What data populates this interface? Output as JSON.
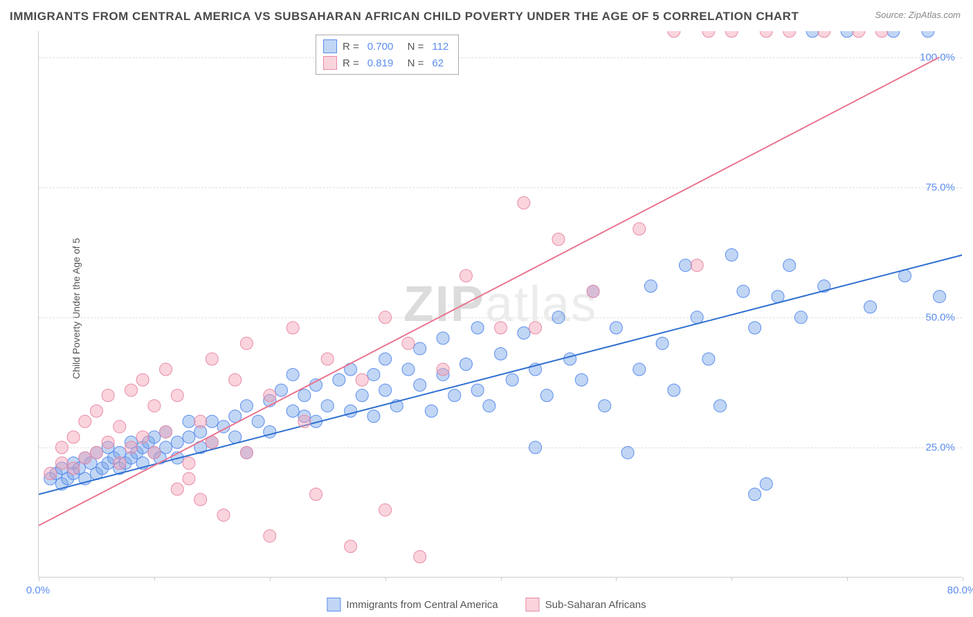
{
  "title": "IMMIGRANTS FROM CENTRAL AMERICA VS SUBSAHARAN AFRICAN CHILD POVERTY UNDER THE AGE OF 5 CORRELATION CHART",
  "source": "Source: ZipAtlas.com",
  "y_label": "Child Poverty Under the Age of 5",
  "watermark_a": "ZIP",
  "watermark_b": "atlas",
  "colors": {
    "blue_fill": "rgba(117,163,230,0.45)",
    "blue_stroke": "#5b8def",
    "blue_line": "#2f6fd0",
    "pink_fill": "rgba(244,160,180,0.45)",
    "pink_stroke": "#e88aa5",
    "pink_line": "#e97490",
    "axis_text": "#5b8def",
    "grid": "#dddddd",
    "title_color": "#4a4a4a",
    "source_color": "#888888"
  },
  "chart": {
    "type": "scatter",
    "xlim": [
      0,
      80
    ],
    "ylim": [
      0,
      105
    ],
    "y_ticks": [
      25,
      50,
      75,
      100
    ],
    "y_tick_labels": [
      "25.0%",
      "50.0%",
      "75.0%",
      "100.0%"
    ],
    "x_ticks": [
      0,
      10,
      20,
      30,
      40,
      50,
      60,
      70,
      80
    ],
    "x_tick_labels_shown": {
      "0": "0.0%",
      "80": "80.0%"
    },
    "marker_radius": 9,
    "line_width": 2,
    "series": [
      {
        "name": "Immigrants from Central America",
        "color_key": "blue",
        "R": "0.700",
        "N": "112",
        "trend": {
          "x1": 0,
          "y1": 16,
          "x2": 80,
          "y2": 62
        },
        "points": [
          [
            1,
            19
          ],
          [
            1.5,
            20
          ],
          [
            2,
            18
          ],
          [
            2,
            21
          ],
          [
            2.5,
            19
          ],
          [
            3,
            20
          ],
          [
            3,
            22
          ],
          [
            3.5,
            21
          ],
          [
            4,
            19
          ],
          [
            4,
            23
          ],
          [
            4.5,
            22
          ],
          [
            5,
            20
          ],
          [
            5,
            24
          ],
          [
            5.5,
            21
          ],
          [
            6,
            22
          ],
          [
            6,
            25
          ],
          [
            6.5,
            23
          ],
          [
            7,
            21
          ],
          [
            7,
            24
          ],
          [
            7.5,
            22
          ],
          [
            8,
            23
          ],
          [
            8,
            26
          ],
          [
            8.5,
            24
          ],
          [
            9,
            22
          ],
          [
            9,
            25
          ],
          [
            9.5,
            26
          ],
          [
            10,
            24
          ],
          [
            10,
            27
          ],
          [
            10.5,
            23
          ],
          [
            11,
            25
          ],
          [
            11,
            28
          ],
          [
            12,
            23
          ],
          [
            12,
            26
          ],
          [
            13,
            27
          ],
          [
            13,
            30
          ],
          [
            14,
            25
          ],
          [
            14,
            28
          ],
          [
            15,
            26
          ],
          [
            15,
            30
          ],
          [
            16,
            29
          ],
          [
            17,
            27
          ],
          [
            17,
            31
          ],
          [
            18,
            24
          ],
          [
            18,
            33
          ],
          [
            19,
            30
          ],
          [
            20,
            28
          ],
          [
            20,
            34
          ],
          [
            21,
            36
          ],
          [
            22,
            32
          ],
          [
            22,
            39
          ],
          [
            23,
            31
          ],
          [
            23,
            35
          ],
          [
            24,
            30
          ],
          [
            24,
            37
          ],
          [
            25,
            33
          ],
          [
            26,
            38
          ],
          [
            27,
            32
          ],
          [
            27,
            40
          ],
          [
            28,
            35
          ],
          [
            29,
            31
          ],
          [
            29,
            39
          ],
          [
            30,
            36
          ],
          [
            30,
            42
          ],
          [
            31,
            33
          ],
          [
            32,
            40
          ],
          [
            33,
            37
          ],
          [
            33,
            44
          ],
          [
            34,
            32
          ],
          [
            35,
            39
          ],
          [
            35,
            46
          ],
          [
            36,
            35
          ],
          [
            37,
            41
          ],
          [
            38,
            36
          ],
          [
            38,
            48
          ],
          [
            39,
            33
          ],
          [
            40,
            43
          ],
          [
            41,
            38
          ],
          [
            42,
            47
          ],
          [
            43,
            25
          ],
          [
            43,
            40
          ],
          [
            44,
            35
          ],
          [
            45,
            50
          ],
          [
            46,
            42
          ],
          [
            47,
            38
          ],
          [
            48,
            55
          ],
          [
            49,
            33
          ],
          [
            50,
            48
          ],
          [
            51,
            24
          ],
          [
            52,
            40
          ],
          [
            53,
            56
          ],
          [
            54,
            45
          ],
          [
            55,
            36
          ],
          [
            56,
            60
          ],
          [
            57,
            50
          ],
          [
            58,
            42
          ],
          [
            59,
            33
          ],
          [
            60,
            62
          ],
          [
            61,
            55
          ],
          [
            62,
            48
          ],
          [
            63,
            18
          ],
          [
            64,
            54
          ],
          [
            65,
            60
          ],
          [
            66,
            50
          ],
          [
            67,
            105
          ],
          [
            68,
            56
          ],
          [
            70,
            105
          ],
          [
            72,
            52
          ],
          [
            74,
            105
          ],
          [
            75,
            58
          ],
          [
            77,
            105
          ],
          [
            78,
            54
          ],
          [
            62,
            16
          ]
        ]
      },
      {
        "name": "Sub-Saharan Africans",
        "color_key": "pink",
        "R": "0.819",
        "N": "62",
        "trend": {
          "x1": 0,
          "y1": 10,
          "x2": 78,
          "y2": 100
        },
        "points": [
          [
            1,
            20
          ],
          [
            2,
            22
          ],
          [
            2,
            25
          ],
          [
            3,
            21
          ],
          [
            3,
            27
          ],
          [
            4,
            23
          ],
          [
            4,
            30
          ],
          [
            5,
            24
          ],
          [
            5,
            32
          ],
          [
            6,
            26
          ],
          [
            6,
            35
          ],
          [
            7,
            22
          ],
          [
            7,
            29
          ],
          [
            8,
            25
          ],
          [
            8,
            36
          ],
          [
            9,
            27
          ],
          [
            9,
            38
          ],
          [
            10,
            24
          ],
          [
            10,
            33
          ],
          [
            11,
            28
          ],
          [
            11,
            40
          ],
          [
            12,
            17
          ],
          [
            12,
            35
          ],
          [
            13,
            22
          ],
          [
            13,
            19
          ],
          [
            14,
            30
          ],
          [
            14,
            15
          ],
          [
            15,
            26
          ],
          [
            15,
            42
          ],
          [
            16,
            12
          ],
          [
            17,
            38
          ],
          [
            18,
            24
          ],
          [
            18,
            45
          ],
          [
            20,
            8
          ],
          [
            20,
            35
          ],
          [
            22,
            48
          ],
          [
            23,
            30
          ],
          [
            24,
            16
          ],
          [
            25,
            42
          ],
          [
            27,
            6
          ],
          [
            28,
            38
          ],
          [
            30,
            13
          ],
          [
            30,
            50
          ],
          [
            32,
            45
          ],
          [
            33,
            4
          ],
          [
            35,
            40
          ],
          [
            37,
            58
          ],
          [
            40,
            48
          ],
          [
            42,
            72
          ],
          [
            43,
            48
          ],
          [
            45,
            65
          ],
          [
            48,
            55
          ],
          [
            52,
            67
          ],
          [
            55,
            105
          ],
          [
            57,
            60
          ],
          [
            58,
            105
          ],
          [
            60,
            105
          ],
          [
            63,
            105
          ],
          [
            65,
            105
          ],
          [
            68,
            105
          ],
          [
            71,
            105
          ],
          [
            73,
            105
          ]
        ]
      }
    ]
  },
  "legend_bottom": [
    {
      "label": "Immigrants from Central America",
      "color_key": "blue"
    },
    {
      "label": "Sub-Saharan Africans",
      "color_key": "pink"
    }
  ]
}
